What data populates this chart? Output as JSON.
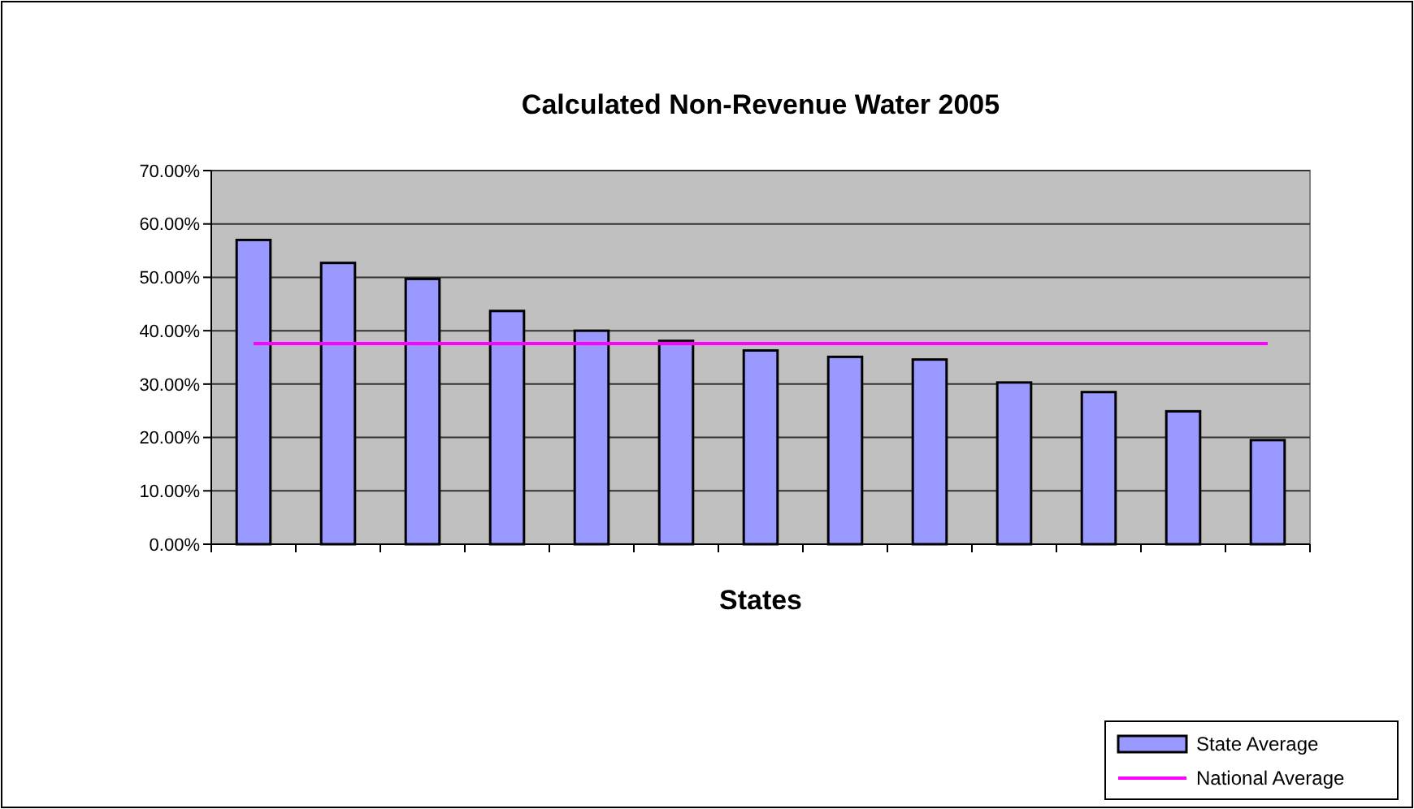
{
  "chart_data": {
    "type": "bar",
    "title": "Calculated Non-Revenue Water 2005",
    "xlabel": "States",
    "categories": [
      null,
      null,
      null,
      null,
      null,
      null,
      null,
      null,
      null,
      null,
      null,
      null,
      null
    ],
    "series": [
      {
        "name": "State Average",
        "color": "#9999ff",
        "values": [
          57.0,
          52.7,
          49.7,
          43.7,
          40.0,
          38.1,
          36.3,
          35.1,
          34.6,
          30.3,
          28.5,
          24.9,
          19.5
        ]
      },
      {
        "name": "National Average",
        "type": "line",
        "color": "#ff00ff",
        "values": [
          37.6,
          37.6,
          37.6,
          37.6,
          37.6,
          37.6,
          37.6,
          37.6,
          37.6,
          37.6,
          37.6,
          37.6,
          37.6
        ]
      }
    ],
    "ylim": [
      0,
      70
    ],
    "yticks": [
      {
        "value": 0,
        "label": "0.00%"
      },
      {
        "value": 10,
        "label": "10.00%"
      },
      {
        "value": 20,
        "label": "20.00%"
      },
      {
        "value": 30,
        "label": "30.00%"
      },
      {
        "value": 40,
        "label": "40.00%"
      },
      {
        "value": 50,
        "label": "50.00%"
      },
      {
        "value": 60,
        "label": "60.00%"
      },
      {
        "value": 70,
        "label": "70.00%"
      }
    ],
    "grid": "y",
    "legend": "bottom right",
    "marker": "none"
  }
}
